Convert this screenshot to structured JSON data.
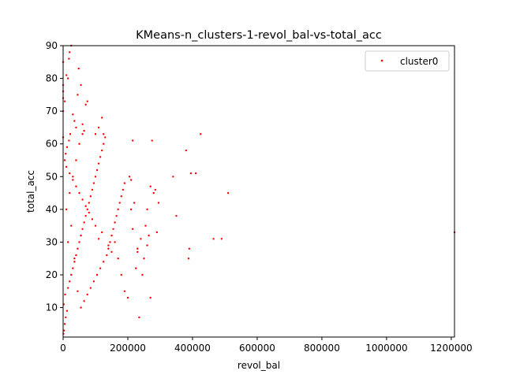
{
  "chart_data": {
    "type": "scatter",
    "title": "KMeans-n_clusters-1-revol_bal-vs-total_acc",
    "xlabel": "revol_bal",
    "ylabel": "total_acc",
    "xlim": [
      0,
      1210000
    ],
    "ylim": [
      1,
      90
    ],
    "xticks": [
      0,
      200000,
      400000,
      600000,
      800000,
      1000000,
      1200000
    ],
    "xtick_labels": [
      "0",
      "200000",
      "400000",
      "600000",
      "800000",
      "1000000",
      "1200000"
    ],
    "yticks": [
      10,
      20,
      30,
      40,
      50,
      60,
      70,
      80,
      90
    ],
    "ytick_labels": [
      "10",
      "20",
      "30",
      "40",
      "50",
      "60",
      "70",
      "80",
      "90"
    ],
    "grid": false,
    "legend_position": "upper right",
    "series": [
      {
        "name": "cluster0",
        "color": "#ff0000",
        "points": [
          [
            1000,
            2
          ],
          [
            3000,
            3
          ],
          [
            5000,
            5
          ],
          [
            8000,
            7
          ],
          [
            12000,
            9
          ],
          [
            2000,
            11
          ],
          [
            6000,
            14
          ],
          [
            15000,
            16
          ],
          [
            20000,
            18
          ],
          [
            25000,
            20
          ],
          [
            30000,
            22
          ],
          [
            35000,
            24
          ],
          [
            40000,
            26
          ],
          [
            45000,
            28
          ],
          [
            50000,
            30
          ],
          [
            55000,
            32
          ],
          [
            60000,
            34
          ],
          [
            65000,
            36
          ],
          [
            70000,
            38
          ],
          [
            75000,
            40
          ],
          [
            80000,
            42
          ],
          [
            85000,
            44
          ],
          [
            90000,
            46
          ],
          [
            95000,
            48
          ],
          [
            100000,
            50
          ],
          [
            105000,
            52
          ],
          [
            110000,
            54
          ],
          [
            115000,
            56
          ],
          [
            120000,
            58
          ],
          [
            125000,
            60
          ],
          [
            130000,
            62
          ],
          [
            10000,
            40
          ],
          [
            20000,
            45
          ],
          [
            30000,
            50
          ],
          [
            40000,
            55
          ],
          [
            50000,
            60
          ],
          [
            60000,
            63
          ],
          [
            15000,
            30
          ],
          [
            25000,
            35
          ],
          [
            35000,
            25
          ],
          [
            45000,
            15
          ],
          [
            55000,
            10
          ],
          [
            65000,
            12
          ],
          [
            75000,
            14
          ],
          [
            85000,
            16
          ],
          [
            95000,
            18
          ],
          [
            105000,
            20
          ],
          [
            115000,
            22
          ],
          [
            125000,
            24
          ],
          [
            135000,
            26
          ],
          [
            140000,
            28
          ],
          [
            145000,
            30
          ],
          [
            150000,
            32
          ],
          [
            155000,
            34
          ],
          [
            160000,
            36
          ],
          [
            165000,
            38
          ],
          [
            170000,
            40
          ],
          [
            175000,
            42
          ],
          [
            180000,
            44
          ],
          [
            185000,
            46
          ],
          [
            190000,
            48
          ],
          [
            160000,
            30
          ],
          [
            170000,
            25
          ],
          [
            180000,
            20
          ],
          [
            190000,
            15
          ],
          [
            150000,
            27
          ],
          [
            140000,
            29
          ],
          [
            120000,
            33
          ],
          [
            110000,
            31
          ],
          [
            100000,
            35
          ],
          [
            90000,
            37
          ],
          [
            80000,
            39
          ],
          [
            70000,
            41
          ],
          [
            60000,
            43
          ],
          [
            50000,
            45
          ],
          [
            40000,
            47
          ],
          [
            30000,
            49
          ],
          [
            20000,
            51
          ],
          [
            10000,
            53
          ],
          [
            5000,
            55
          ],
          [
            8000,
            57
          ],
          [
            12000,
            59
          ],
          [
            18000,
            61
          ],
          [
            22000,
            63
          ],
          [
            200000,
            13
          ],
          [
            210000,
            40
          ],
          [
            220000,
            42
          ],
          [
            215000,
            34
          ],
          [
            225000,
            22
          ],
          [
            230000,
            28
          ],
          [
            240000,
            31
          ],
          [
            245000,
            20
          ],
          [
            250000,
            25
          ],
          [
            255000,
            35
          ],
          [
            260000,
            40
          ],
          [
            270000,
            13
          ],
          [
            275000,
            61
          ],
          [
            280000,
            45
          ],
          [
            285000,
            46
          ],
          [
            290000,
            33
          ],
          [
            295000,
            42
          ],
          [
            270000,
            47
          ],
          [
            210000,
            49
          ],
          [
            205000,
            50
          ],
          [
            215000,
            61
          ],
          [
            230000,
            27
          ],
          [
            260000,
            29
          ],
          [
            265000,
            32
          ],
          [
            235000,
            7
          ],
          [
            340000,
            50
          ],
          [
            350000,
            38
          ],
          [
            380000,
            58
          ],
          [
            388000,
            25
          ],
          [
            390000,
            28
          ],
          [
            395000,
            51
          ],
          [
            410000,
            51
          ],
          [
            425000,
            63
          ],
          [
            465000,
            31
          ],
          [
            490000,
            31
          ],
          [
            510000,
            45
          ],
          [
            1210000,
            33
          ],
          [
            0,
            62
          ],
          [
            0,
            70
          ],
          [
            0,
            74
          ],
          [
            0,
            76
          ],
          [
            0,
            78
          ],
          [
            5000,
            73
          ],
          [
            10000,
            81
          ],
          [
            15000,
            80
          ],
          [
            20000,
            88
          ],
          [
            25000,
            90
          ],
          [
            18000,
            86
          ],
          [
            30000,
            69
          ],
          [
            35000,
            67
          ],
          [
            40000,
            65
          ],
          [
            45000,
            75
          ],
          [
            48000,
            83
          ],
          [
            55000,
            78
          ],
          [
            60000,
            66
          ],
          [
            65000,
            64
          ],
          [
            70000,
            72
          ],
          [
            75000,
            73
          ],
          [
            100000,
            63
          ],
          [
            110000,
            65
          ],
          [
            120000,
            68
          ],
          [
            125000,
            63
          ],
          [
            0,
            85
          ]
        ]
      }
    ]
  }
}
